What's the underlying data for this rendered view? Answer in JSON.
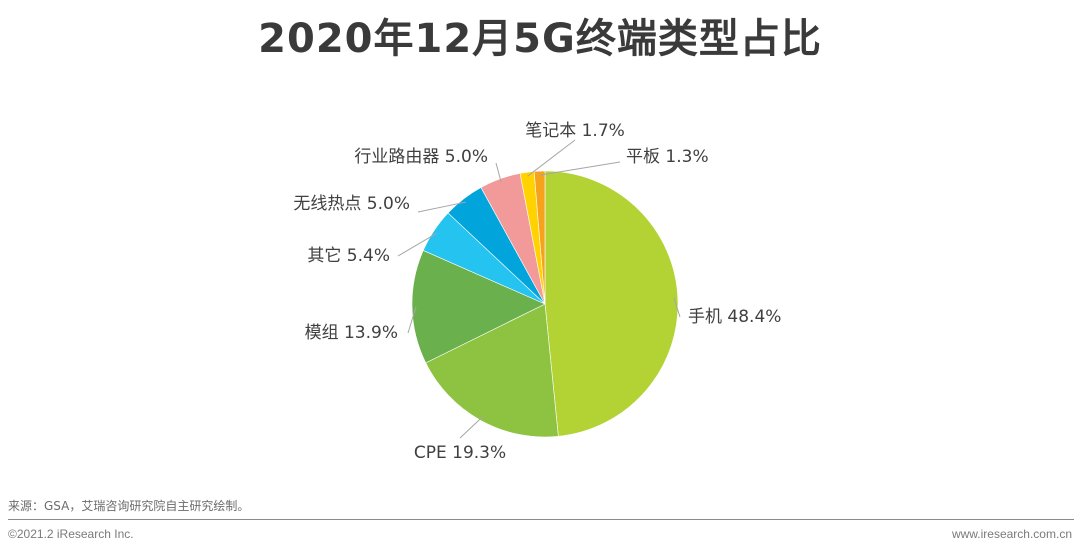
{
  "chart_data": {
    "type": "pie",
    "title": "2020年12月5G终端类型占比",
    "slices": [
      {
        "label": "手机",
        "value": 48.4,
        "display": "手机 48.4%",
        "color": "#b3d334"
      },
      {
        "label": "CPE",
        "value": 19.3,
        "display": "CPE 19.3%",
        "color": "#8dc341"
      },
      {
        "label": "模组",
        "value": 13.9,
        "display": "模组 13.9%",
        "color": "#6ab04c"
      },
      {
        "label": "其它",
        "value": 5.4,
        "display": "其它 5.4%",
        "color": "#25c3f0"
      },
      {
        "label": "无线热点",
        "value": 5.0,
        "display": "无线热点 5.0%",
        "color": "#02a4dc"
      },
      {
        "label": "行业路由器",
        "value": 5.0,
        "display": "行业路由器 5.0%",
        "color": "#f29a9a"
      },
      {
        "label": "笔记本",
        "value": 1.7,
        "display": "笔记本 1.7%",
        "color": "#ffd200"
      },
      {
        "label": "平板",
        "value": 1.3,
        "display": "平板 1.3%",
        "color": "#f7a21b"
      }
    ]
  },
  "footer": {
    "source": "来源：GSA，艾瑞咨询研究院自主研究绘制。",
    "copyright": "©2021.2 iResearch Inc.",
    "website": "www.iresearch.com.cn"
  }
}
